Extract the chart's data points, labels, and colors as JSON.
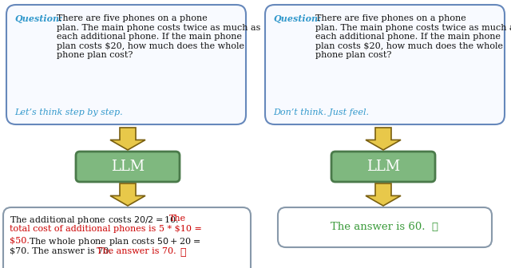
{
  "question_label": "Question:",
  "question_body": "There are five phones on a phone\nplan. The main phone costs twice as much as\neach additional phone. If the main phone\nplan costs $20, how much does the whole\nphone plan cost?",
  "prompt_left": "Let’s think step by step.",
  "prompt_right": "Don’t think. Just feel.",
  "llm_label": "LLM",
  "output_right": "The answer is 60.  ✓",
  "output_right_color": "#3a9a3a",
  "box_border_color": "#6688bb",
  "llm_box_fill": "#7fb87f",
  "llm_box_border": "#4a7a4a",
  "llm_text_color": "#ffffff",
  "arrow_fill": "#e8c84a",
  "arrow_edge": "#7a6010",
  "question_color": "#3399cc",
  "bg_color": "#ffffff",
  "output_left_border": "#8899aa",
  "output_right_border": "#8899aa",
  "fs_question": 8.0,
  "fs_prompt": 8.0,
  "fs_llm": 13,
  "fs_output": 8.0
}
